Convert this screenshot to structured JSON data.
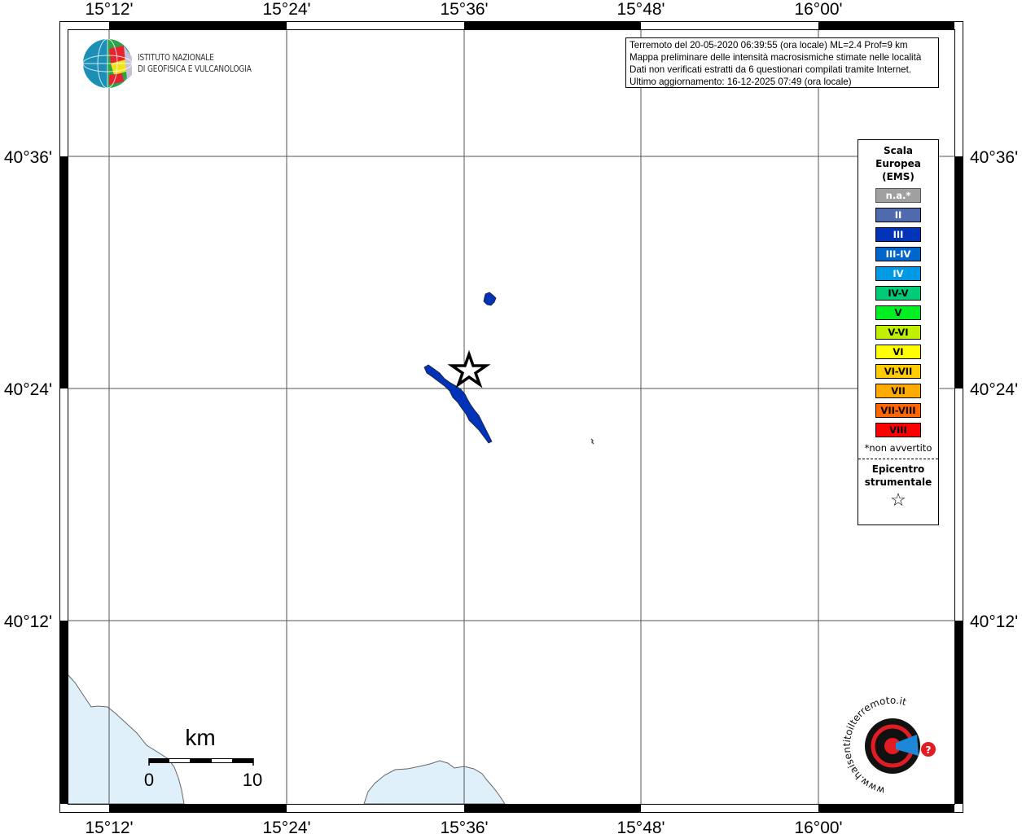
{
  "map": {
    "lon_labels": [
      "15°12'",
      "15°24'",
      "15°36'",
      "15°48'",
      "16°00'"
    ],
    "lat_labels": [
      "40°36'",
      "40°24'",
      "40°12'"
    ],
    "sea_color": "#dff0fb",
    "epicenter": {
      "lat": 40.415,
      "lon": 15.61,
      "icon": "star-icon"
    }
  },
  "info_box": {
    "lines": [
      "Terremoto del 20-05-2020 06:39:55 (ora locale) ML=2.4 Prof=9 km",
      "Mappa preliminare delle intensità macrosismiche stimate nelle località",
      "Dati non verificati estratti da 6 questionari compilati tramite Internet.",
      "Ultimo aggiornamento: 16-12-2025 07:49 (ora locale)"
    ]
  },
  "logo": {
    "line1": "ISTITUTO NAZIONALE",
    "line2": "DI GEOFISICA E VULCANOLOGIA",
    "hsit_text": "www.haisentitoilterremoto.it"
  },
  "legend": {
    "title": [
      "Scala",
      "Europea",
      "(EMS)"
    ],
    "items": [
      {
        "label": "n.a.*",
        "color": "#a0a0a0",
        "text_color": "#ffffff"
      },
      {
        "label": "II",
        "color": "#4f6aad",
        "text_color": "#ffffff"
      },
      {
        "label": "III",
        "color": "#0033b8",
        "text_color": "#ffffff"
      },
      {
        "label": "III-IV",
        "color": "#0066cc",
        "text_color": "#ffffff"
      },
      {
        "label": "IV",
        "color": "#0099e6",
        "text_color": "#ffffff"
      },
      {
        "label": "IV-V",
        "color": "#00cc77",
        "text_color": "#000000"
      },
      {
        "label": "V",
        "color": "#00ee22",
        "text_color": "#000000"
      },
      {
        "label": "V-VI",
        "color": "#c0f000",
        "text_color": "#000000"
      },
      {
        "label": "VI",
        "color": "#ffff00",
        "text_color": "#000000"
      },
      {
        "label": "VI-VII",
        "color": "#ffcc00",
        "text_color": "#000000"
      },
      {
        "label": "VII",
        "color": "#ffaa00",
        "text_color": "#000000"
      },
      {
        "label": "VII-VIII",
        "color": "#ff6600",
        "text_color": "#000000"
      },
      {
        "label": "VIII",
        "color": "#ff0000",
        "text_color": "#000000"
      }
    ],
    "note": "*non avvertito",
    "epicenter_label": [
      "Epicentro",
      "strumentale"
    ]
  },
  "scale_bar": {
    "unit": "km",
    "min": "0",
    "max": "10"
  }
}
